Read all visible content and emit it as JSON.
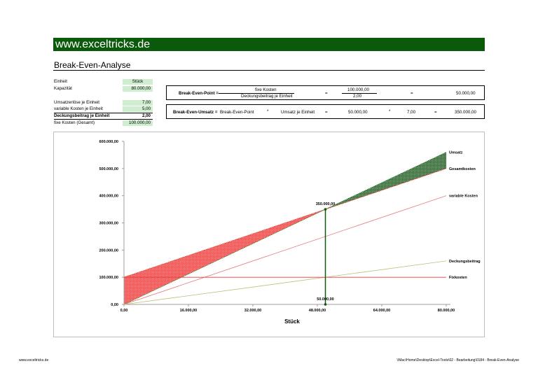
{
  "header": {
    "site_banner": "www.exceltricks.de",
    "page_title": "Break-Even-Analyse"
  },
  "inputs": {
    "einheit": {
      "label": "Einheit",
      "value": "Stück"
    },
    "kapazitaet": {
      "label": "Kapazität",
      "value": "80.000,00"
    },
    "umsatzerloese": {
      "label": "Umsatzerlöse je Einheit",
      "value": "7,00"
    },
    "variable_kosten": {
      "label": "variable Kosten je Einheit",
      "value": "5,00"
    },
    "deckungsbeitrag": {
      "label": "Deckungsbeitrag je Einheit",
      "value": "2,00"
    },
    "fixe_kosten": {
      "label": "fixe Kosten (Gesamt)",
      "value": "100.000,00"
    }
  },
  "bep_box": {
    "label": "Break-Even-Point =",
    "numerator_label": "fixe Kosten",
    "denominator_label": "Deckungsbeitrag je Einheit",
    "eq1": "=",
    "numerator_value": "100.000,00",
    "denominator_value": "2,00",
    "eq2": "=",
    "result": "50.000,00"
  },
  "beu_box": {
    "label": "Break-Even-Umsatz =",
    "term1": "Break-Even-Point",
    "op1": "*",
    "term2": "Umsatz je Einheit",
    "eq1": "=",
    "value1": "50.000,00",
    "op2": "*",
    "value2": "7,00",
    "eq2": "=",
    "result": "350.000,00"
  },
  "chart_data": {
    "type": "line",
    "xlabel": "Stück",
    "ylabel": "",
    "xlim": [
      0,
      80000
    ],
    "ylim": [
      0,
      600000
    ],
    "x_ticks": [
      "0,00",
      "16.000,00",
      "32.000,00",
      "48.000,00",
      "64.000,00",
      "80.000,00"
    ],
    "x_tick_values": [
      0,
      16000,
      32000,
      48000,
      64000,
      80000
    ],
    "y_ticks": [
      "0,00",
      "100.000,00",
      "200.000,00",
      "300.000,00",
      "400.000,00",
      "500.000,00",
      "600.000,00"
    ],
    "y_tick_values": [
      0,
      100000,
      200000,
      300000,
      400000,
      500000,
      600000
    ],
    "x": [
      0,
      80000
    ],
    "series": [
      {
        "name": "Umsatz",
        "values": [
          0,
          560000
        ],
        "color": "#2e7d32"
      },
      {
        "name": "Gesamtkosten",
        "values": [
          100000,
          500000
        ],
        "color": "#e53935"
      },
      {
        "name": "variable Kosten",
        "values": [
          0,
          400000
        ],
        "color": "#e57373"
      },
      {
        "name": "Deckungsbeitrag",
        "values": [
          0,
          160000
        ],
        "color": "#b5c27a"
      },
      {
        "name": "Fixkosten",
        "values": [
          100000,
          100000
        ],
        "color": "#e53935"
      }
    ],
    "annotations": [
      {
        "text": "350.000,00",
        "x": 50000,
        "y": 350000
      },
      {
        "text": "50.000,00",
        "x": 50000,
        "y": 0
      }
    ],
    "break_even": {
      "x": 50000,
      "y": 350000
    },
    "loss_fill_color": "#ff4d4d",
    "profit_fill_color": "#3a6b3a",
    "grid": false,
    "legend": "line-end labels"
  },
  "footer": {
    "left": "www.exceltricks.de",
    "right": "\\\\Mac\\Home\\Desktop\\Excel-Tools\\02 - Bearbeitung\\0184 - Break-Even-Analyse"
  }
}
